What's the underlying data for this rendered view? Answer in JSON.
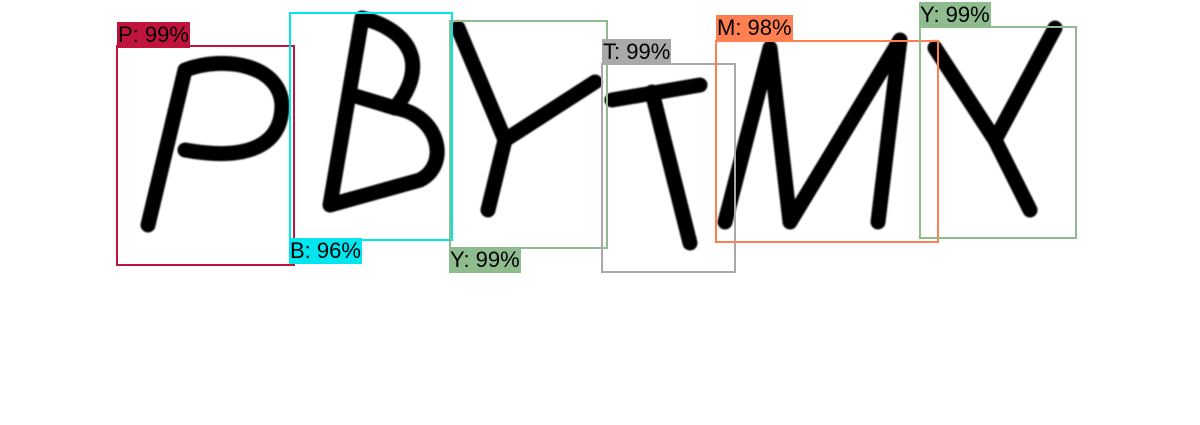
{
  "detections": [
    {
      "label": "P: 99%",
      "color": "#c0143c"
    },
    {
      "label": "B: 96%",
      "color": "#00e5ee"
    },
    {
      "label": "Y: 99%",
      "color": "#8fbc8f"
    },
    {
      "label": "T: 99%",
      "color": "#a9a9a9"
    },
    {
      "label": "M: 98%",
      "color": "#ff7f50"
    },
    {
      "label": "Y: 99%",
      "color": "#8fbc8f"
    }
  ]
}
